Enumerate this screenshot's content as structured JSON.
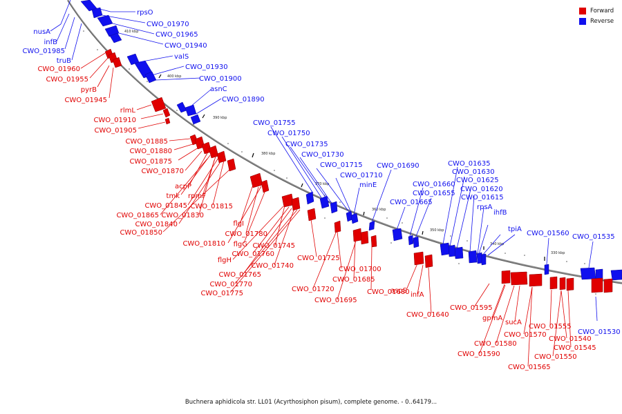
{
  "legend": {
    "forward": {
      "label": "Forward",
      "color": "#e00000"
    },
    "reverse": {
      "label": "Reverse",
      "color": "#1010ee"
    }
  },
  "caption": "Buchnera aphidicola str. LL01 (Acyrthosiphon pisum), complete genome. - 0..64179...",
  "ticks": [
    "410 kbp",
    "400 kbp",
    "390 kbp",
    "380 kbp",
    "370 kbp",
    "360 kbp",
    "350 kbp",
    "340 kbp",
    "330 kbp"
  ],
  "reverse_labels": [
    "rpsO",
    "CWO_01970",
    "CWO_01965",
    "CWO_01940",
    "valS",
    "CWO_01930",
    "CWO_01900",
    "asnC",
    "CWO_01890",
    "nusA",
    "infB",
    "CWO_01985",
    "truB",
    "CWO_01755",
    "CWO_01750",
    "CWO_01735",
    "CWO_01730",
    "CWO_01715",
    "CWO_01710",
    "minE",
    "CWO_01690",
    "CWO_01660",
    "CWO_01655",
    "CWO_01665",
    "CWO_01635",
    "CWO_01630",
    "CWO_01625",
    "CWO_01620",
    "CWO_01615",
    "rpsA",
    "ihfB",
    "tpiA",
    "CWO_01560",
    "CWO_01535",
    "CWO_01530"
  ],
  "forward_labels": [
    "CWO_01960",
    "CWO_01955",
    "pyrB",
    "CWO_01945",
    "rlmL",
    "CWO_01910",
    "CWO_01905",
    "CWO_01885",
    "CWO_01880",
    "CWO_01875",
    "CWO_01870",
    "acpP",
    "tmk",
    "rpmF",
    "CWO_01845",
    "CWO_01815",
    "CWO_01865",
    "CWO_01830",
    "CWO_01840",
    "CWO_01850",
    "flgI",
    "CWO_01780",
    "CWO_01810",
    "flgG",
    "CWO_01745",
    "flgH",
    "CWO_01760",
    "CWO_01740",
    "CWO_01765",
    "CWO_01770",
    "CWO_01775",
    "CWO_01725",
    "CWO_01700",
    "CWO_01685",
    "CWO_01720",
    "CWO_01695",
    "CWO_01680",
    "aspS",
    "infA",
    "CWO_01640",
    "CWO_01595",
    "gpmA",
    "CWO_01580",
    "CWO_01590",
    "sucA",
    "CWO_01570",
    "CWO_01555",
    "CWO_01540",
    "CWO_01545",
    "CWO_01550",
    "CWO_01565"
  ]
}
